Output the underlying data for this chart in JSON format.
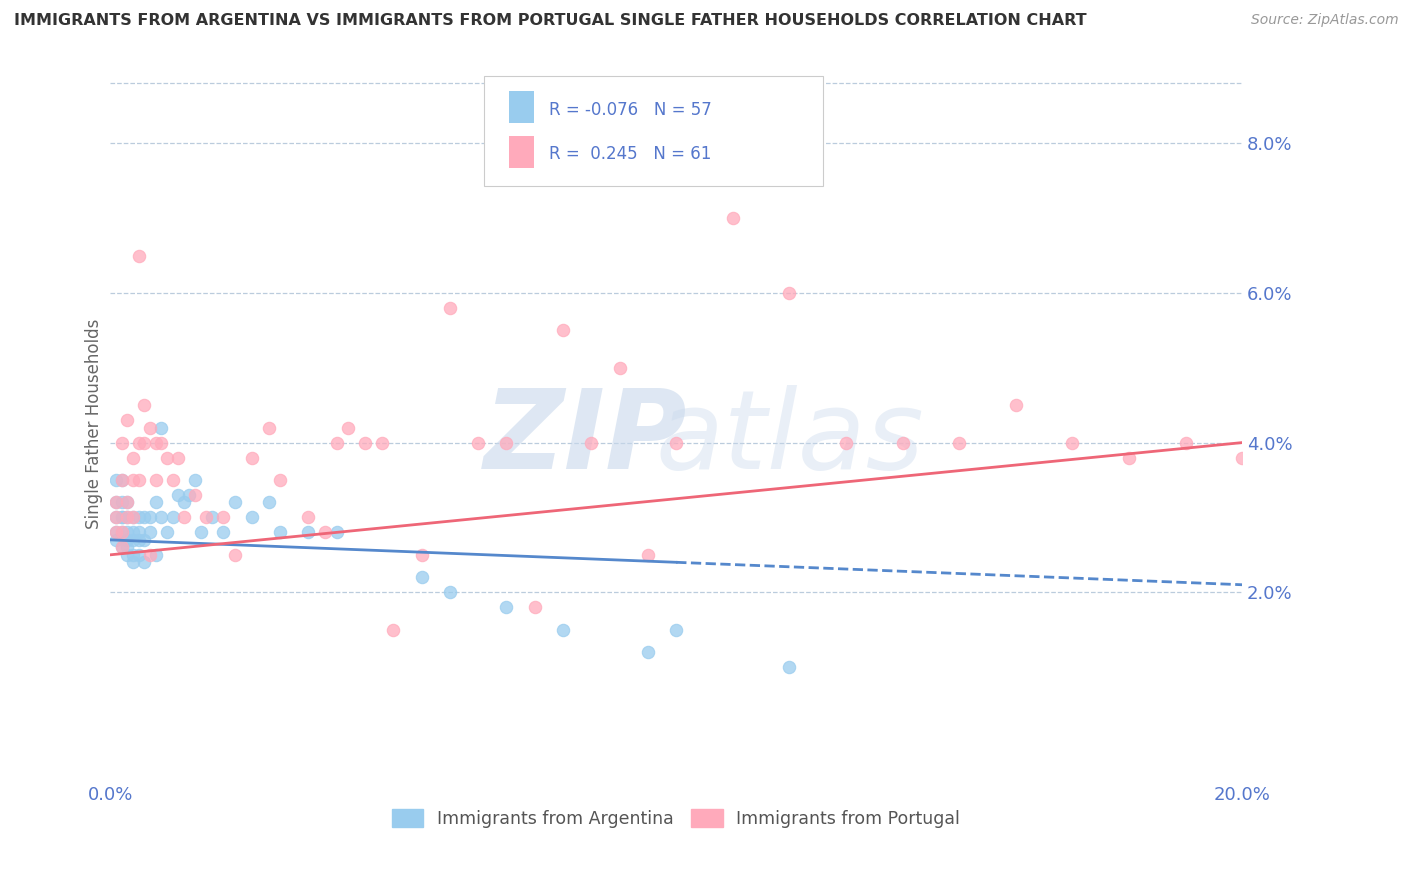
{
  "title": "IMMIGRANTS FROM ARGENTINA VS IMMIGRANTS FROM PORTUGAL SINGLE FATHER HOUSEHOLDS CORRELATION CHART",
  "source_text": "Source: ZipAtlas.com",
  "ylabel": "Single Father Households",
  "ytick_labels": [
    "2.0%",
    "4.0%",
    "6.0%",
    "8.0%"
  ],
  "ytick_values": [
    0.02,
    0.04,
    0.06,
    0.08
  ],
  "xlim": [
    0.0,
    0.2
  ],
  "ylim": [
    -0.005,
    0.09
  ],
  "color_argentina": "#99CCEE",
  "color_portugal": "#FFAABB",
  "color_axis_labels": "#5577CC",
  "color_trendline_arg": "#5588CC",
  "color_trendline_port": "#EE6677",
  "watermark_zip_color": "#C8D8EC",
  "watermark_atlas_color": "#C8D8EC",
  "argentina_x": [
    0.001,
    0.001,
    0.001,
    0.001,
    0.001,
    0.002,
    0.002,
    0.002,
    0.002,
    0.002,
    0.002,
    0.003,
    0.003,
    0.003,
    0.003,
    0.003,
    0.003,
    0.004,
    0.004,
    0.004,
    0.004,
    0.004,
    0.005,
    0.005,
    0.005,
    0.005,
    0.006,
    0.006,
    0.006,
    0.007,
    0.007,
    0.008,
    0.008,
    0.009,
    0.009,
    0.01,
    0.011,
    0.012,
    0.013,
    0.014,
    0.015,
    0.016,
    0.018,
    0.02,
    0.022,
    0.025,
    0.028,
    0.03,
    0.035,
    0.04,
    0.055,
    0.06,
    0.07,
    0.08,
    0.095,
    0.1,
    0.12
  ],
  "argentina_y": [
    0.027,
    0.028,
    0.03,
    0.032,
    0.035,
    0.026,
    0.028,
    0.03,
    0.03,
    0.032,
    0.035,
    0.025,
    0.026,
    0.027,
    0.028,
    0.03,
    0.032,
    0.024,
    0.025,
    0.027,
    0.028,
    0.03,
    0.025,
    0.027,
    0.028,
    0.03,
    0.024,
    0.027,
    0.03,
    0.028,
    0.03,
    0.025,
    0.032,
    0.042,
    0.03,
    0.028,
    0.03,
    0.033,
    0.032,
    0.033,
    0.035,
    0.028,
    0.03,
    0.028,
    0.032,
    0.03,
    0.032,
    0.028,
    0.028,
    0.028,
    0.022,
    0.02,
    0.018,
    0.015,
    0.012,
    0.015,
    0.01
  ],
  "portugal_x": [
    0.001,
    0.001,
    0.001,
    0.002,
    0.002,
    0.002,
    0.002,
    0.003,
    0.003,
    0.003,
    0.004,
    0.004,
    0.004,
    0.005,
    0.005,
    0.005,
    0.006,
    0.006,
    0.007,
    0.007,
    0.008,
    0.008,
    0.009,
    0.01,
    0.011,
    0.012,
    0.013,
    0.015,
    0.017,
    0.02,
    0.022,
    0.025,
    0.028,
    0.03,
    0.035,
    0.038,
    0.04,
    0.042,
    0.045,
    0.048,
    0.05,
    0.055,
    0.06,
    0.065,
    0.07,
    0.075,
    0.08,
    0.085,
    0.09,
    0.095,
    0.1,
    0.11,
    0.12,
    0.13,
    0.14,
    0.15,
    0.16,
    0.17,
    0.18,
    0.19,
    0.2
  ],
  "portugal_y": [
    0.028,
    0.03,
    0.032,
    0.026,
    0.028,
    0.035,
    0.04,
    0.03,
    0.032,
    0.043,
    0.03,
    0.035,
    0.038,
    0.035,
    0.04,
    0.065,
    0.04,
    0.045,
    0.025,
    0.042,
    0.035,
    0.04,
    0.04,
    0.038,
    0.035,
    0.038,
    0.03,
    0.033,
    0.03,
    0.03,
    0.025,
    0.038,
    0.042,
    0.035,
    0.03,
    0.028,
    0.04,
    0.042,
    0.04,
    0.04,
    0.015,
    0.025,
    0.058,
    0.04,
    0.04,
    0.018,
    0.055,
    0.04,
    0.05,
    0.025,
    0.04,
    0.07,
    0.06,
    0.04,
    0.04,
    0.04,
    0.045,
    0.04,
    0.038,
    0.04,
    0.038
  ],
  "arg_trend_x0": 0.0,
  "arg_trend_x1": 0.2,
  "arg_trend_y0": 0.027,
  "arg_trend_y1": 0.021,
  "port_trend_x0": 0.0,
  "port_trend_x1": 0.2,
  "port_trend_y0": 0.025,
  "port_trend_y1": 0.04
}
